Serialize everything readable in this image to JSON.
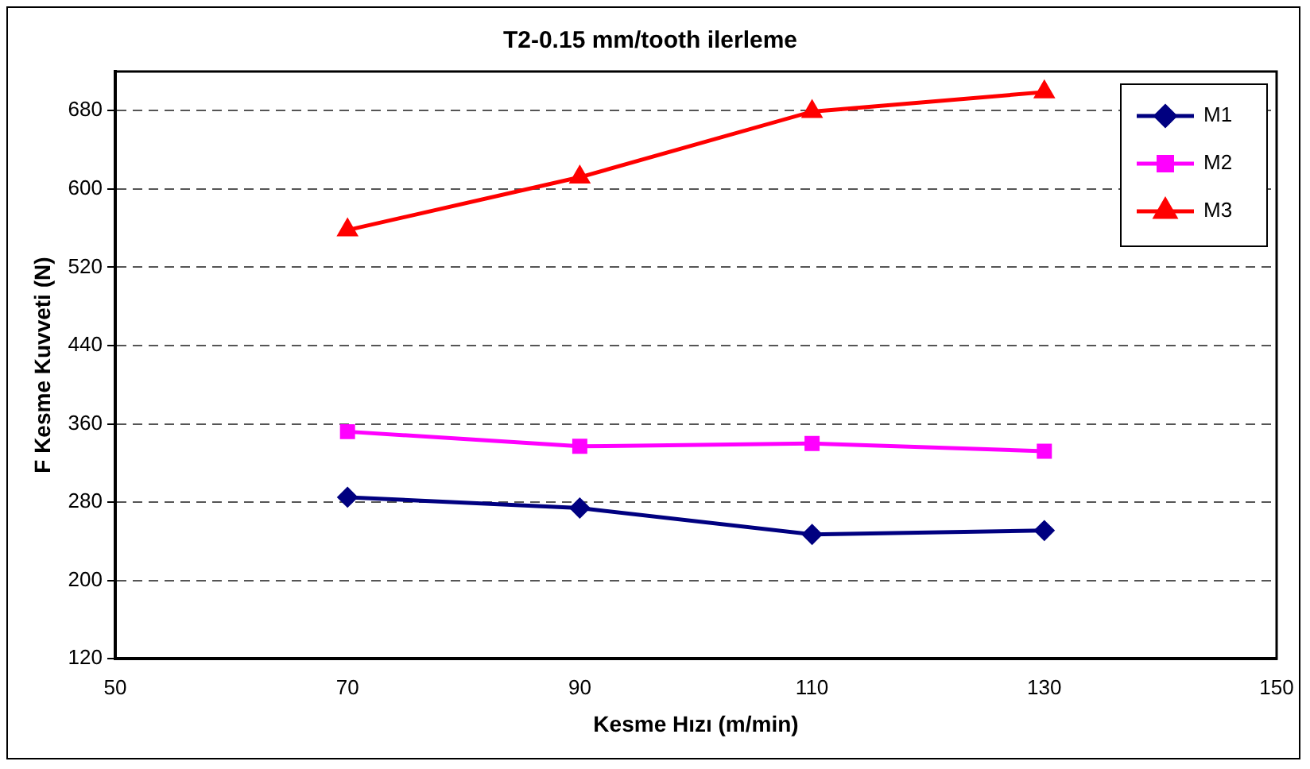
{
  "chart_data": {
    "type": "line",
    "title": "T2-0.15 mm/tooth ilerleme",
    "xlabel": "Kesme Hızı (m/min)",
    "ylabel": "F Kesme Kuvveti (N)",
    "x": [
      70,
      90,
      110,
      130
    ],
    "series": [
      {
        "name": "M1",
        "color": "#000080",
        "marker": "diamond",
        "values": [
          285,
          274,
          247,
          251
        ]
      },
      {
        "name": "M2",
        "color": "#ff00ff",
        "marker": "square",
        "values": [
          352,
          337,
          340,
          332
        ]
      },
      {
        "name": "M3",
        "color": "#ff0000",
        "marker": "triangle",
        "values": [
          558,
          612,
          679,
          699
        ]
      }
    ],
    "xlim": [
      50,
      150
    ],
    "xticks": [
      50,
      70,
      90,
      110,
      130,
      150
    ],
    "ylim": [
      120,
      720
    ],
    "yticks": [
      120,
      200,
      280,
      360,
      440,
      520,
      600,
      680
    ],
    "grid": "y",
    "legend": "top right",
    "line_style": "solid"
  }
}
